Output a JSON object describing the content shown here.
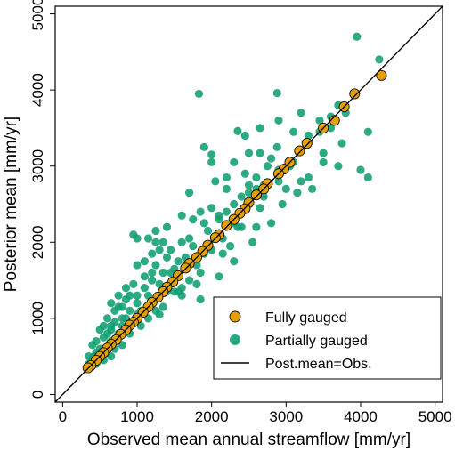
{
  "chart_data": {
    "type": "scatter",
    "xlabel": "Observed mean annual streamflow [mm/yr]",
    "ylabel": "Posterior mean [mm/yr]",
    "xlim": [
      -100,
      5100
    ],
    "ylim": [
      -100,
      5100
    ],
    "xticks": [
      0,
      1000,
      2000,
      3000,
      4000,
      5000
    ],
    "yticks": [
      0,
      1000,
      2000,
      3000,
      4000,
      5000
    ],
    "legend_position": "bottom-right",
    "colors": {
      "partial": "#109e73",
      "full": "#e59f00",
      "outline": "#111111",
      "line": "#000000"
    },
    "series": [
      {
        "name": "Partially gauged",
        "marker": "filled-circle",
        "points": [
          [
            3950,
            4700
          ],
          [
            4250,
            4400
          ],
          [
            2880,
            3960
          ],
          [
            1830,
            3950
          ],
          [
            3700,
            3800
          ],
          [
            3600,
            3650
          ],
          [
            3200,
            3700
          ],
          [
            2900,
            3600
          ],
          [
            3450,
            3600
          ],
          [
            3100,
            3450
          ],
          [
            2650,
            3500
          ],
          [
            2350,
            3460
          ],
          [
            4100,
            3450
          ],
          [
            3300,
            3400
          ],
          [
            2450,
            3400
          ],
          [
            3750,
            3300
          ],
          [
            2880,
            3250
          ],
          [
            1900,
            3250
          ],
          [
            2500,
            3170
          ],
          [
            2650,
            3170
          ],
          [
            3500,
            3170
          ],
          [
            2000,
            3150
          ],
          [
            2800,
            3100
          ],
          [
            2300,
            3050
          ],
          [
            2000,
            3050
          ],
          [
            3700,
            3000
          ],
          [
            2750,
            3000
          ],
          [
            4000,
            2950
          ],
          [
            3050,
            3000
          ],
          [
            2200,
            2850
          ],
          [
            2600,
            2850
          ],
          [
            2450,
            2900
          ],
          [
            3200,
            2800
          ],
          [
            4100,
            2850
          ],
          [
            2050,
            2800
          ],
          [
            2500,
            2750
          ],
          [
            3000,
            2700
          ],
          [
            2200,
            2700
          ],
          [
            1700,
            2650
          ],
          [
            2500,
            2650
          ],
          [
            3350,
            2700
          ],
          [
            2400,
            2600
          ],
          [
            2700,
            2600
          ],
          [
            2300,
            2500
          ],
          [
            2000,
            2450
          ],
          [
            2650,
            2450
          ],
          [
            1850,
            2400
          ],
          [
            2100,
            2350
          ],
          [
            2200,
            2400
          ],
          [
            1600,
            2350
          ],
          [
            2100,
            2300
          ],
          [
            1750,
            2300
          ],
          [
            2300,
            2250
          ],
          [
            1900,
            2250
          ],
          [
            2400,
            2200
          ],
          [
            1400,
            2200
          ],
          [
            950,
            2100
          ],
          [
            1000,
            2050
          ],
          [
            1250,
            2150
          ],
          [
            1150,
            2050
          ],
          [
            1600,
            2000
          ],
          [
            1700,
            2050
          ],
          [
            1450,
            1900
          ],
          [
            1300,
            1900
          ],
          [
            1200,
            1850
          ],
          [
            1900,
            1850
          ],
          [
            1400,
            1800
          ],
          [
            1550,
            1750
          ],
          [
            1100,
            1750
          ],
          [
            1250,
            1700
          ],
          [
            1650,
            1700
          ],
          [
            1000,
            1700
          ],
          [
            1850,
            1600
          ],
          [
            1350,
            1600
          ],
          [
            1500,
            1650
          ],
          [
            1100,
            1550
          ],
          [
            1200,
            1500
          ],
          [
            950,
            1450
          ],
          [
            1800,
            1450
          ],
          [
            1300,
            1450
          ],
          [
            1600,
            1400
          ],
          [
            850,
            1400
          ],
          [
            1100,
            1400
          ],
          [
            1400,
            1350
          ],
          [
            1000,
            1300
          ],
          [
            750,
            1300
          ],
          [
            1150,
            1300
          ],
          [
            850,
            1250
          ],
          [
            1250,
            1250
          ],
          [
            650,
            1200
          ],
          [
            1000,
            1200
          ],
          [
            800,
            1150
          ],
          [
            1150,
            1150
          ],
          [
            900,
            1100
          ],
          [
            700,
            1100
          ],
          [
            1000,
            1050
          ],
          [
            800,
            1000
          ],
          [
            600,
            1000
          ],
          [
            950,
            950
          ],
          [
            700,
            950
          ],
          [
            550,
            900
          ],
          [
            800,
            900
          ],
          [
            650,
            850
          ],
          [
            500,
            850
          ],
          [
            750,
            800
          ],
          [
            900,
            800
          ],
          [
            550,
            750
          ],
          [
            450,
            700
          ],
          [
            650,
            700
          ],
          [
            400,
            650
          ],
          [
            800,
            650
          ],
          [
            550,
            600
          ],
          [
            700,
            600
          ],
          [
            450,
            550
          ],
          [
            600,
            550
          ],
          [
            350,
            500
          ],
          [
            500,
            500
          ],
          [
            650,
            500
          ],
          [
            400,
            450
          ],
          [
            550,
            450
          ],
          [
            350,
            400
          ],
          [
            450,
            400
          ],
          [
            1600,
            1300
          ],
          [
            1850,
            1250
          ],
          [
            2100,
            1550
          ],
          [
            2300,
            1750
          ],
          [
            2550,
            2000
          ],
          [
            2800,
            2250
          ],
          [
            2600,
            2200
          ],
          [
            2950,
            2500
          ],
          [
            3150,
            2650
          ],
          [
            3300,
            2850
          ],
          [
            3500,
            3050
          ],
          [
            1450,
            1600
          ],
          [
            1050,
            900
          ],
          [
            1150,
            1000
          ],
          [
            1250,
            1100
          ],
          [
            1350,
            1150
          ],
          [
            1500,
            1350
          ],
          [
            1700,
            1500
          ],
          [
            2000,
            1900
          ],
          [
            2150,
            2050
          ],
          [
            2350,
            2200
          ],
          [
            2700,
            2750
          ],
          [
            2900,
            2800
          ],
          [
            3600,
            3500
          ],
          [
            3800,
            3700
          ],
          [
            1200,
            1600
          ],
          [
            900,
            1300
          ],
          [
            750,
            1150
          ],
          [
            600,
            800
          ],
          [
            1300,
            1050
          ],
          [
            1550,
            1350
          ],
          [
            1800,
            1700
          ],
          [
            2150,
            1850
          ],
          [
            2250,
            1950
          ],
          [
            2900,
            2950
          ],
          [
            3100,
            3050
          ],
          [
            3450,
            3450
          ],
          [
            1950,
            2150
          ],
          [
            1650,
            1800
          ],
          [
            1450,
            1450
          ],
          [
            1050,
            1100
          ],
          [
            850,
            1000
          ],
          [
            650,
            900
          ],
          [
            500,
            600
          ],
          [
            380,
            380
          ],
          [
            420,
            500
          ],
          [
            1350,
            2000
          ],
          [
            1250,
            2000
          ],
          [
            1750,
            1950
          ],
          [
            2600,
            2700
          ]
        ]
      },
      {
        "name": "Fully gauged",
        "marker": "filled-circle-outlined",
        "points": [
          [
            4280,
            4190
          ],
          [
            3920,
            3950
          ],
          [
            3780,
            3780
          ],
          [
            3650,
            3600
          ],
          [
            3500,
            3500
          ],
          [
            3280,
            3300
          ],
          [
            3180,
            3200
          ],
          [
            3050,
            3050
          ],
          [
            2970,
            2960
          ],
          [
            2900,
            2900
          ],
          [
            2750,
            2770
          ],
          [
            2700,
            2700
          ],
          [
            2600,
            2620
          ],
          [
            2500,
            2520
          ],
          [
            2450,
            2440
          ],
          [
            2380,
            2380
          ],
          [
            2300,
            2300
          ],
          [
            2200,
            2220
          ],
          [
            2100,
            2100
          ],
          [
            2050,
            2060
          ],
          [
            1950,
            1960
          ],
          [
            1880,
            1880
          ],
          [
            1800,
            1800
          ],
          [
            1700,
            1720
          ],
          [
            1650,
            1660
          ],
          [
            1550,
            1560
          ],
          [
            1480,
            1480
          ],
          [
            1400,
            1410
          ],
          [
            1350,
            1350
          ],
          [
            1280,
            1280
          ],
          [
            1200,
            1210
          ],
          [
            1150,
            1150
          ],
          [
            1080,
            1080
          ],
          [
            1000,
            1000
          ],
          [
            950,
            950
          ],
          [
            900,
            910
          ],
          [
            850,
            850
          ],
          [
            780,
            790
          ],
          [
            720,
            720
          ],
          [
            650,
            660
          ],
          [
            600,
            610
          ],
          [
            550,
            550
          ],
          [
            500,
            500
          ],
          [
            450,
            450
          ],
          [
            380,
            380
          ],
          [
            340,
            350
          ]
        ]
      },
      {
        "name": "Post.mean=Obs.",
        "marker": "line",
        "points": [
          [
            -100,
            -100
          ],
          [
            5100,
            5100
          ]
        ]
      }
    ]
  }
}
